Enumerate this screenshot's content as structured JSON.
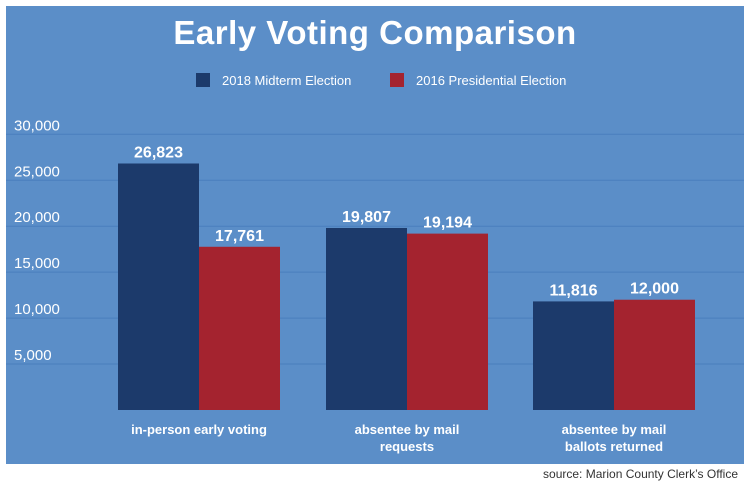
{
  "chart_data": {
    "type": "bar",
    "title": "Early Voting Comparison",
    "categories": [
      "in-person early voting",
      "absentee by mail requests",
      "absentee by mail ballots returned"
    ],
    "category_lines": [
      [
        "in-person early voting"
      ],
      [
        "absentee by mail",
        "requests"
      ],
      [
        "absentee by mail",
        "ballots returned"
      ]
    ],
    "series": [
      {
        "name": "2018 Midterm Election",
        "values": [
          26823,
          19807,
          11816
        ],
        "labels": [
          "26,823",
          "19,807",
          "11,816"
        ],
        "color": "#1c3a6b"
      },
      {
        "name": "2016 Presidential Election",
        "values": [
          17761,
          19194,
          12000
        ],
        "labels": [
          "17,761",
          "19,194",
          "12,000"
        ],
        "color": "#a4232f"
      }
    ],
    "yticks": [
      5000,
      10000,
      15000,
      20000,
      25000,
      30000
    ],
    "ytick_labels": [
      "5,000",
      "10,000",
      "15,000",
      "20,000",
      "25,000",
      "30,000"
    ],
    "ylim": [
      0,
      32000
    ],
    "grid": true,
    "legend_position": "top-center"
  },
  "colors": {
    "panel": "#5b8ec8",
    "midterm": "#1c3a6b",
    "presidential": "#a4232f",
    "grid": "#4a7fbd",
    "text": "#ffffff"
  },
  "source": "source: Marion County Clerk’s Office"
}
